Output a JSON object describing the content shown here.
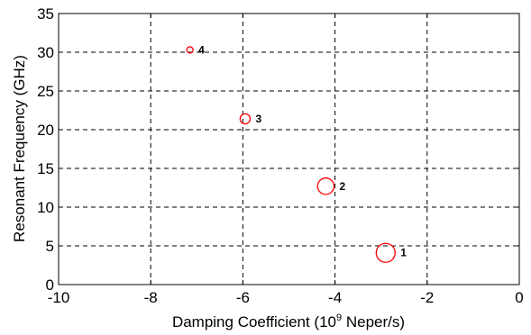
{
  "chart_data": {
    "type": "scatter",
    "title": "",
    "xlabel": "Damping Coefficient (10",
    "xlabel_superscript": "9",
    "xlabel_suffix": " Neper/s)",
    "ylabel": "Resonant Frequency (GHz)",
    "xlim": [
      -10,
      0
    ],
    "ylim": [
      0,
      35
    ],
    "x_ticks": [
      -10,
      -8,
      -6,
      -4,
      -2,
      0
    ],
    "y_ticks": [
      0,
      5,
      10,
      15,
      20,
      25,
      30,
      35
    ],
    "x_tick_labels": [
      "-10",
      "-8",
      "-6",
      "-4",
      "-2",
      "0"
    ],
    "y_tick_labels": [
      "0",
      "5",
      "10",
      "15",
      "20",
      "25",
      "30",
      "35"
    ],
    "grid": true,
    "grid_style": "dashed",
    "marker_color": "#ff0000",
    "points": [
      {
        "label": "1",
        "x": -2.9,
        "y": 4.1,
        "marker_size": 3.0
      },
      {
        "label": "2",
        "x": -4.2,
        "y": 12.7,
        "marker_size": 2.6
      },
      {
        "label": "3",
        "x": -5.95,
        "y": 21.4,
        "marker_size": 1.6
      },
      {
        "label": "4",
        "x": -7.15,
        "y": 30.3,
        "marker_size": 1.0
      }
    ]
  }
}
